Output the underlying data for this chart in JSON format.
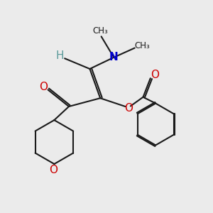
{
  "bg_color": "#ebebeb",
  "bond_color": "#1a1a1a",
  "N_color": "#0000cc",
  "O_color": "#cc0000",
  "H_color": "#5a9a9a",
  "bond_width": 1.5,
  "figsize": [
    3.0,
    3.0
  ],
  "dpi": 100,
  "xlim": [
    0,
    10
  ],
  "ylim": [
    0,
    10
  ]
}
